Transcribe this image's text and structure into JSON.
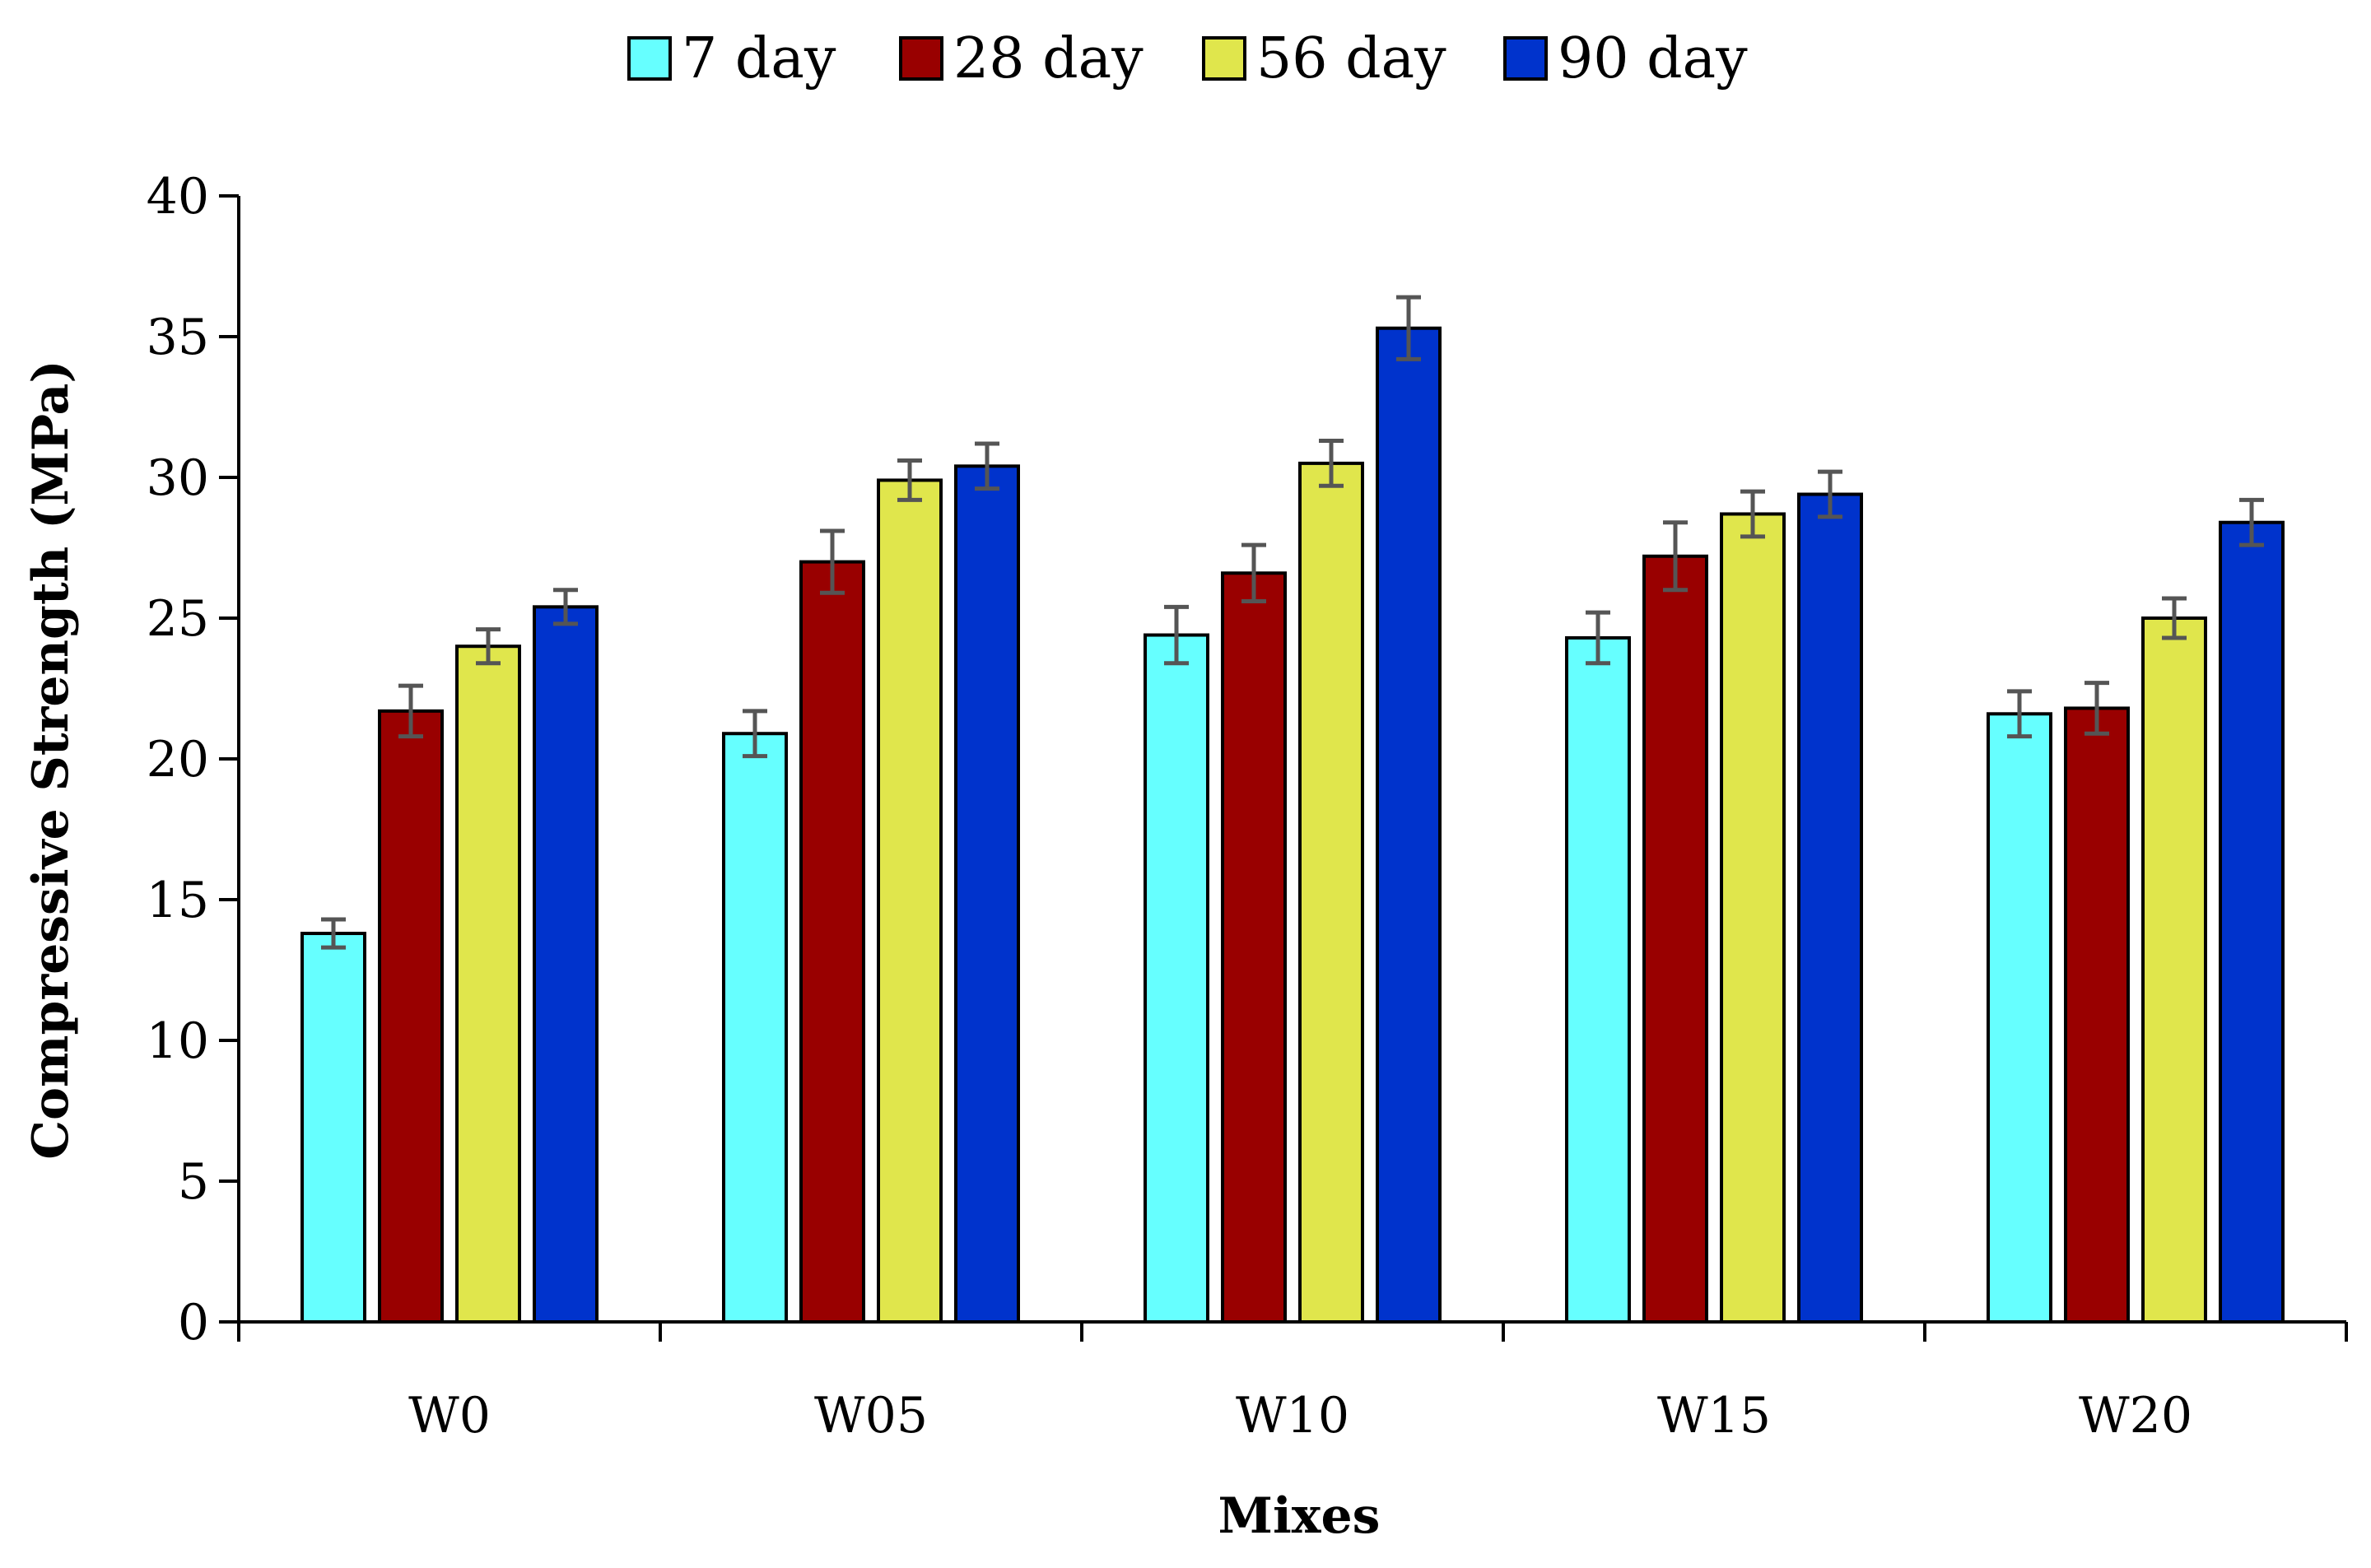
{
  "chart_data": {
    "type": "bar",
    "title": "",
    "xlabel": "Mixes",
    "ylabel": "Compressive Strength (MPa)",
    "ylim": [
      0,
      40
    ],
    "yticks": [
      0,
      5,
      10,
      15,
      20,
      25,
      30,
      35,
      40
    ],
    "categories": [
      "W0",
      "W05",
      "W10",
      "W15",
      "W20"
    ],
    "legend_position": "top",
    "series": [
      {
        "name": "7 day",
        "color": "#66FFFF",
        "values": [
          13.8,
          20.9,
          24.4,
          24.3,
          21.6
        ],
        "errors": [
          0.5,
          0.8,
          1.0,
          0.9,
          0.8
        ]
      },
      {
        "name": "28 day",
        "color": "#990000",
        "values": [
          21.7,
          27.0,
          26.6,
          27.2,
          21.8
        ],
        "errors": [
          0.9,
          1.1,
          1.0,
          1.2,
          0.9
        ]
      },
      {
        "name": "56 day",
        "color": "#E0E64C",
        "values": [
          24.0,
          29.9,
          30.5,
          28.7,
          25.0
        ],
        "errors": [
          0.6,
          0.7,
          0.8,
          0.8,
          0.7
        ]
      },
      {
        "name": "90 day",
        "color": "#0033CC",
        "values": [
          25.4,
          30.4,
          35.3,
          29.4,
          28.4
        ],
        "errors": [
          0.6,
          0.8,
          1.1,
          0.8,
          0.8
        ]
      }
    ]
  }
}
